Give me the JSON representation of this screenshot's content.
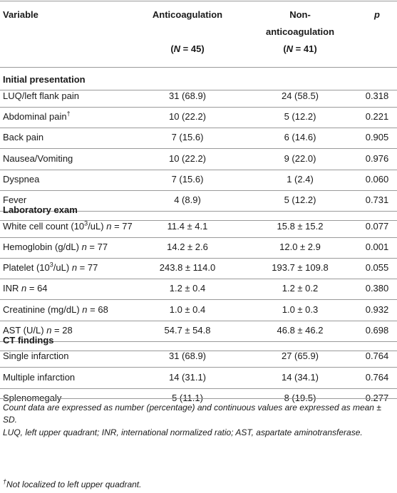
{
  "header": {
    "variable": "Variable",
    "anticoag": "Anticoagulation",
    "anticoag_n": "(N = 45)",
    "nonanticoag_line1": "Non-",
    "nonanticoag_line2": "anticoagulation",
    "nonanticoag_n": "(N = 41)",
    "p": "p"
  },
  "sections": [
    {
      "title": "Initial presentation",
      "rows": [
        {
          "label": "LUQ/left flank pain",
          "sup": "",
          "n": "",
          "a": "31 (68.9)",
          "b": "24 (58.5)",
          "p": "0.318"
        },
        {
          "label": "Abdominal pain",
          "sup": "†",
          "n": "",
          "a": "10 (22.2)",
          "b": "5 (12.2)",
          "p": "0.221"
        },
        {
          "label": "Back pain",
          "sup": "",
          "n": "",
          "a": "7 (15.6)",
          "b": "6 (14.6)",
          "p": "0.905"
        },
        {
          "label": "Nausea/Vomiting",
          "sup": "",
          "n": "",
          "a": "10 (22.2)",
          "b": "9 (22.0)",
          "p": "0.976"
        },
        {
          "label": "Dyspnea",
          "sup": "",
          "n": "",
          "a": "7 (15.6)",
          "b": "1 (2.4)",
          "p": "0.060"
        },
        {
          "label": "Fever",
          "sup": "",
          "n": "",
          "a": "4 (8.9)",
          "b": "5 (12.2)",
          "p": "0.731"
        }
      ]
    },
    {
      "title": "Laboratory exam",
      "rows": [
        {
          "label": "White cell count (10",
          "sup": "3",
          "label_after": "/uL)",
          "n": "77",
          "a": "11.4 ± 4.1",
          "b": "15.8 ± 15.2",
          "p": "0.077"
        },
        {
          "label": "Hemoglobin (g/dL)",
          "sup": "",
          "n": "77",
          "a": "14.2 ± 2.6",
          "b": "12.0 ± 2.9",
          "p": "0.001"
        },
        {
          "label": "Platelet (10",
          "sup": "3",
          "label_after": "/uL)",
          "n": "77",
          "a": "243.8 ± 114.0",
          "b": "193.7 ± 109.8",
          "p": "0.055"
        },
        {
          "label": "INR",
          "sup": "",
          "n": "64",
          "a": "1.2 ± 0.4",
          "b": "1.2 ± 0.2",
          "p": "0.380"
        },
        {
          "label": "Creatinine (mg/dL)",
          "sup": "",
          "n": "68",
          "a": "1.0 ± 0.4",
          "b": "1.0 ± 0.3",
          "p": "0.932"
        },
        {
          "label": "AST (U/L)",
          "sup": "",
          "n": "28",
          "a": "54.7 ± 54.8",
          "b": "46.8 ± 46.2",
          "p": "0.698"
        }
      ]
    },
    {
      "title": "CT findings",
      "rows": [
        {
          "label": "Single infarction",
          "sup": "",
          "n": "",
          "a": "31 (68.9)",
          "b": "27 (65.9)",
          "p": "0.764"
        },
        {
          "label": "Multiple infarction",
          "sup": "",
          "n": "",
          "a": "14 (31.1)",
          "b": "14 (34.1)",
          "p": "0.764"
        },
        {
          "label": "Splenomegaly",
          "sup": "",
          "n": "",
          "a": "5 (11.1)",
          "b": "8 (19.5)",
          "p": "0.277"
        }
      ]
    }
  ],
  "footnotes": {
    "note1": "Count data are expressed as number (percentage) and continuous values are expressed as mean ± SD.",
    "note2": "LUQ, left upper quadrant; INR, international normalized ratio; AST, aspartate aminotransferase.",
    "note3_symbol": "†",
    "note3": "Not localized to left upper quadrant."
  }
}
